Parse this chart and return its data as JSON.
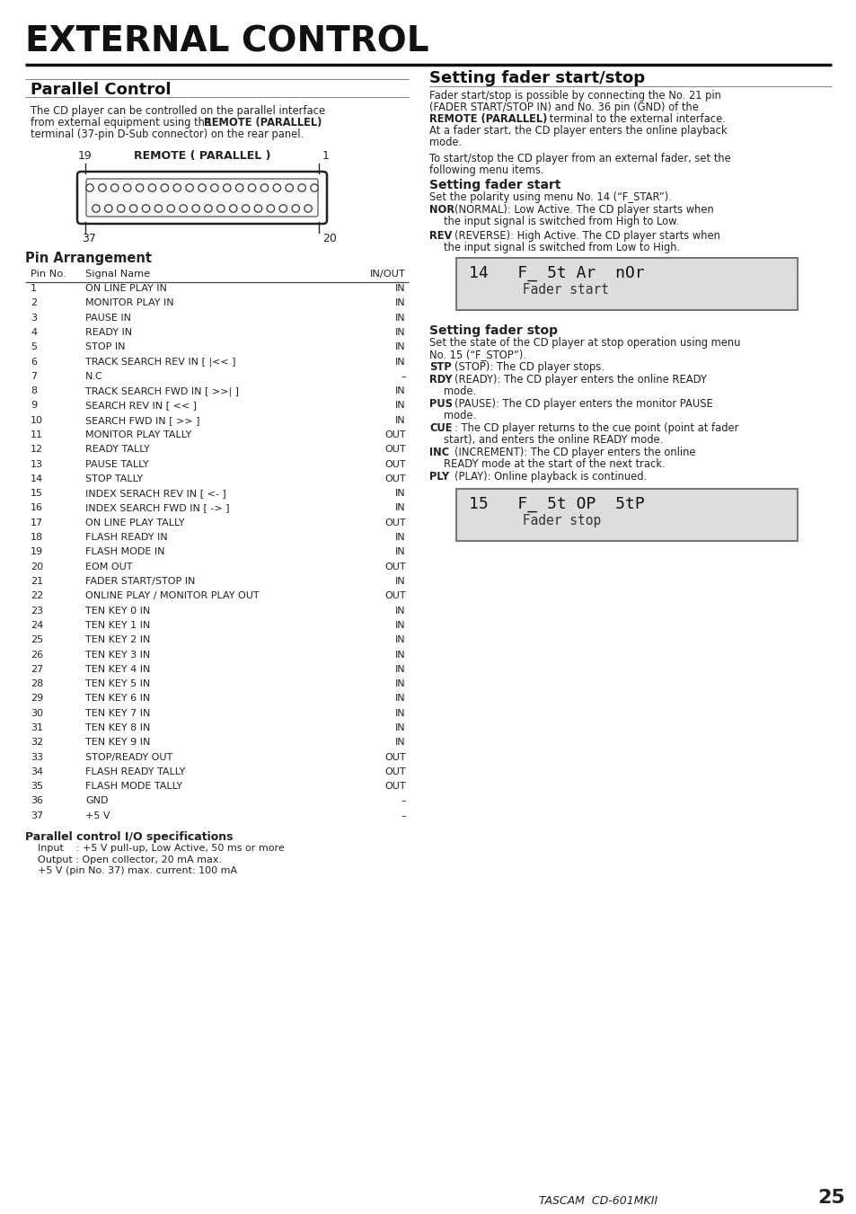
{
  "page_title": "EXTERNAL CONTROL",
  "section1_title": "Parallel Control",
  "connector_label": "REMOTE ( PARALLEL )",
  "pin_arrangement_title": "Pin Arrangement",
  "table_header": [
    "Pin No.",
    "Signal Name",
    "IN/OUT"
  ],
  "table_data": [
    [
      "1",
      "ON LINE PLAY IN",
      "IN"
    ],
    [
      "2",
      "MONITOR PLAY IN",
      "IN"
    ],
    [
      "3",
      "PAUSE IN",
      "IN"
    ],
    [
      "4",
      "READY IN",
      "IN"
    ],
    [
      "5",
      "STOP IN",
      "IN"
    ],
    [
      "6",
      "TRACK SEARCH REV IN [ |<< ]",
      "IN"
    ],
    [
      "7",
      "N.C",
      "–"
    ],
    [
      "8",
      "TRACK SEARCH FWD IN [ >>| ]",
      "IN"
    ],
    [
      "9",
      "SEARCH REV IN [ << ]",
      "IN"
    ],
    [
      "10",
      "SEARCH FWD IN [ >> ]",
      "IN"
    ],
    [
      "11",
      "MONITOR PLAY TALLY",
      "OUT"
    ],
    [
      "12",
      "READY TALLY",
      "OUT"
    ],
    [
      "13",
      "PAUSE TALLY",
      "OUT"
    ],
    [
      "14",
      "STOP TALLY",
      "OUT"
    ],
    [
      "15",
      "INDEX SERACH REV IN [ <- ]",
      "IN"
    ],
    [
      "16",
      "INDEX SEARCH FWD IN [ -> ]",
      "IN"
    ],
    [
      "17",
      "ON LINE PLAY TALLY",
      "OUT"
    ],
    [
      "18",
      "FLASH READY IN",
      "IN"
    ],
    [
      "19",
      "FLASH MODE IN",
      "IN"
    ],
    [
      "20",
      "EOM OUT",
      "OUT"
    ],
    [
      "21",
      "FADER START/STOP IN",
      "IN"
    ],
    [
      "22",
      "ONLINE PLAY / MONITOR PLAY OUT",
      "OUT"
    ],
    [
      "23",
      "TEN KEY 0 IN",
      "IN"
    ],
    [
      "24",
      "TEN KEY 1 IN",
      "IN"
    ],
    [
      "25",
      "TEN KEY 2 IN",
      "IN"
    ],
    [
      "26",
      "TEN KEY 3 IN",
      "IN"
    ],
    [
      "27",
      "TEN KEY 4 IN",
      "IN"
    ],
    [
      "28",
      "TEN KEY 5 IN",
      "IN"
    ],
    [
      "29",
      "TEN KEY 6 IN",
      "IN"
    ],
    [
      "30",
      "TEN KEY 7 IN",
      "IN"
    ],
    [
      "31",
      "TEN KEY 8 IN",
      "IN"
    ],
    [
      "32",
      "TEN KEY 9 IN",
      "IN"
    ],
    [
      "33",
      "STOP/READY OUT",
      "OUT"
    ],
    [
      "34",
      "FLASH READY TALLY",
      "OUT"
    ],
    [
      "35",
      "FLASH MODE TALLY",
      "OUT"
    ],
    [
      "36",
      "GND",
      "–"
    ],
    [
      "37",
      "+5 V",
      "–"
    ]
  ],
  "io_specs_title": "Parallel control I/O specifications",
  "io_specs": [
    "Input    : +5 V pull-up, Low Active, 50 ms or more",
    "Output : Open collector, 20 mA max.",
    "+5 V (pin No. 37) max. current: 100 mA"
  ],
  "section2_title": "Setting fader start/stop",
  "fader_start_title": "Setting fader start",
  "fader_stop_title": "Setting fader stop",
  "display1_line1": "14   F_ 5t Ar  nOr",
  "display1_line2": "     Fader start",
  "display2_line1": "15   F_ 5t OP  5tP",
  "display2_line2": "     Fader stop",
  "footer_italic": "TASCAM  CD-601MKII",
  "footer_page": "25",
  "bg_color": "#ffffff",
  "text_color": "#222222",
  "title_color": "#111111"
}
